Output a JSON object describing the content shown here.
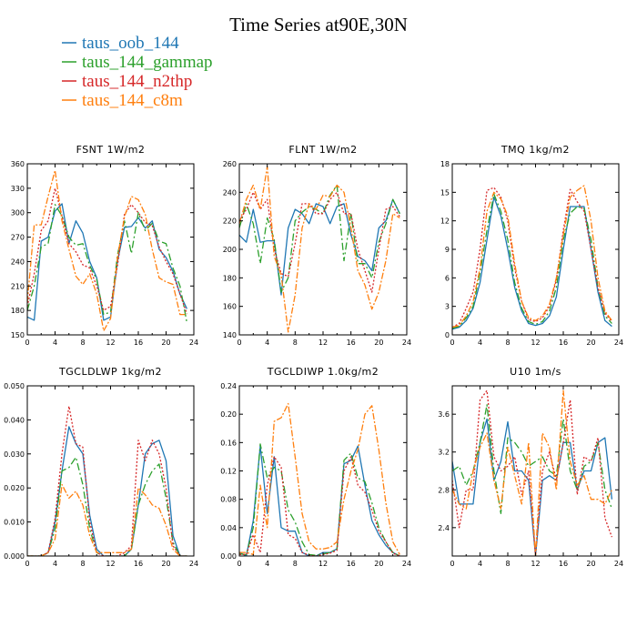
{
  "figure": {
    "title": "Time Series at90E,30N"
  },
  "colors": {
    "taus_oob_144": "#1f77b4",
    "taus_144_gammap": "#2ca02c",
    "taus_144_n2thp": "#d62728",
    "taus_144_c8m": "#ff7f0e"
  },
  "legend": [
    {
      "name": "taus_oob_144",
      "color": "#1f77b4",
      "dash": ""
    },
    {
      "name": "taus_144_gammap",
      "color": "#2ca02c",
      "dash": "8,3,2,3"
    },
    {
      "name": "taus_144_n2thp",
      "color": "#d62728",
      "dash": "2,2"
    },
    {
      "name": "taus_144_c8m",
      "color": "#ff7f0e",
      "dash": "7,2,2,2"
    }
  ],
  "chart_data": [
    {
      "type": "line",
      "title": "FSNT   1W/m2",
      "x": [
        0,
        1,
        2,
        3,
        4,
        5,
        6,
        7,
        8,
        9,
        10,
        11,
        12,
        13,
        14,
        15,
        16,
        17,
        18,
        19,
        20,
        21,
        22,
        23
      ],
      "xlim": [
        0,
        24
      ],
      "ylim": [
        150,
        360
      ],
      "xticks": [
        0,
        4,
        8,
        12,
        16,
        20,
        24
      ],
      "yticks": [
        150,
        180,
        210,
        240,
        270,
        300,
        330,
        360
      ],
      "ytick_labels": [
        "150",
        "180",
        "210",
        "240",
        "270",
        "300",
        "330",
        "360"
      ],
      "series": [
        {
          "name": "taus_oob_144",
          "values": [
            172,
            168,
            265,
            270,
            302,
            311,
            262,
            290,
            275,
            240,
            220,
            168,
            172,
            240,
            282,
            283,
            294,
            281,
            290,
            255,
            245,
            228,
            200,
            182
          ]
        },
        {
          "name": "taus_144_gammap",
          "values": [
            180,
            210,
            258,
            262,
            310,
            296,
            270,
            260,
            262,
            235,
            218,
            175,
            178,
            248,
            290,
            250,
            300,
            278,
            287,
            265,
            262,
            232,
            210,
            165
          ]
        },
        {
          "name": "taus_144_n2thp",
          "values": [
            185,
            225,
            278,
            290,
            330,
            296,
            262,
            252,
            236,
            232,
            210,
            180,
            185,
            235,
            298,
            310,
            300,
            288,
            284,
            258,
            240,
            225,
            200,
            176
          ]
        },
        {
          "name": "taus_144_c8m",
          "values": [
            190,
            285,
            285,
            320,
            352,
            290,
            255,
            222,
            212,
            225,
            200,
            155,
            170,
            245,
            295,
            320,
            316,
            298,
            255,
            220,
            215,
            212,
            175,
            175
          ]
        }
      ]
    },
    {
      "type": "line",
      "title": "FLNT   1W/m2",
      "x": [
        0,
        1,
        2,
        3,
        4,
        5,
        6,
        7,
        8,
        9,
        10,
        11,
        12,
        13,
        14,
        15,
        16,
        17,
        18,
        19,
        20,
        21,
        22,
        23
      ],
      "xlim": [
        0,
        24
      ],
      "ylim": [
        140,
        260
      ],
      "xticks": [
        0,
        4,
        8,
        12,
        16,
        20,
        24
      ],
      "yticks": [
        140,
        160,
        180,
        200,
        220,
        240,
        260
      ],
      "ytick_labels": [
        "140",
        "160",
        "180",
        "200",
        "220",
        "240",
        "260"
      ],
      "series": [
        {
          "name": "taus_oob_144",
          "values": [
            210,
            205,
            228,
            205,
            206,
            206,
            168,
            215,
            228,
            225,
            218,
            232,
            230,
            218,
            230,
            232,
            210,
            195,
            192,
            185,
            215,
            220,
            235,
            225
          ]
        },
        {
          "name": "taus_144_gammap",
          "values": [
            215,
            232,
            218,
            190,
            222,
            207,
            170,
            180,
            220,
            226,
            230,
            228,
            225,
            238,
            245,
            192,
            225,
            190,
            190,
            180,
            205,
            218,
            235,
            225
          ]
        },
        {
          "name": "taus_144_n2thp",
          "values": [
            220,
            228,
            240,
            228,
            235,
            200,
            183,
            181,
            204,
            232,
            232,
            225,
            225,
            235,
            240,
            225,
            225,
            200,
            185,
            170,
            200,
            228,
            230,
            223
          ]
        },
        {
          "name": "taus_144_c8m",
          "values": [
            218,
            235,
            245,
            228,
            258,
            195,
            182,
            142,
            168,
            215,
            232,
            228,
            238,
            237,
            245,
            240,
            215,
            185,
            175,
            158,
            170,
            192,
            225,
            222
          ]
        }
      ]
    },
    {
      "type": "line",
      "title": "TMQ   1kg/m2",
      "x": [
        0,
        1,
        2,
        3,
        4,
        5,
        6,
        7,
        8,
        9,
        10,
        11,
        12,
        13,
        14,
        15,
        16,
        17,
        18,
        19,
        20,
        21,
        22,
        23
      ],
      "xlim": [
        0,
        24
      ],
      "ylim": [
        0,
        18
      ],
      "xticks": [
        0,
        4,
        8,
        12,
        16,
        20,
        24
      ],
      "yticks": [
        0,
        3,
        6,
        9,
        12,
        15,
        18
      ],
      "ytick_labels": [
        "0",
        "3",
        "6",
        "9",
        "12",
        "15",
        "18"
      ],
      "series": [
        {
          "name": "taus_oob_144",
          "values": [
            0.6,
            0.8,
            1.5,
            2.8,
            5.5,
            10,
            14.5,
            12.5,
            9,
            5,
            2.5,
            1.2,
            1,
            1.2,
            2,
            4,
            9,
            13.5,
            13.5,
            13.5,
            9,
            4.5,
            1.5,
            0.9
          ]
        },
        {
          "name": "taus_144_gammap",
          "values": [
            0.7,
            0.9,
            1.8,
            3,
            6.5,
            11,
            14.8,
            13,
            10,
            5.5,
            2.8,
            1.4,
            1.1,
            1.4,
            2.5,
            5,
            10,
            12.8,
            13.5,
            13.3,
            10,
            5,
            2,
            1.2
          ]
        },
        {
          "name": "taus_144_n2thp",
          "values": [
            0.8,
            1.2,
            2.8,
            4.5,
            9,
            15.2,
            15.5,
            14.5,
            12,
            7,
            3.5,
            1.6,
            1.4,
            1.8,
            3,
            5.8,
            11,
            15.3,
            14,
            13,
            9,
            5,
            2.3,
            1.4
          ]
        },
        {
          "name": "taus_144_c8m",
          "values": [
            0.8,
            1,
            2,
            3.5,
            7,
            13,
            15,
            14.3,
            12.5,
            7.5,
            3.5,
            1.8,
            1.5,
            2,
            3.2,
            6,
            10.5,
            14.5,
            15.2,
            15.7,
            12,
            6,
            2.5,
            1.5
          ]
        }
      ]
    },
    {
      "type": "line",
      "title": "TGCLDLWP   1kg/m2",
      "x": [
        0,
        1,
        2,
        3,
        4,
        5,
        6,
        7,
        8,
        9,
        10,
        11,
        12,
        13,
        14,
        15,
        16,
        17,
        18,
        19,
        20,
        21,
        22,
        23
      ],
      "xlim": [
        0,
        24
      ],
      "ylim": [
        0,
        0.05
      ],
      "xticks": [
        0,
        4,
        8,
        12,
        16,
        20,
        24
      ],
      "yticks": [
        0,
        0.01,
        0.02,
        0.03,
        0.04,
        0.05
      ],
      "ytick_labels": [
        "0.000",
        "0.010",
        "0.020",
        "0.030",
        "0.040",
        "0.050"
      ],
      "series": [
        {
          "name": "taus_oob_144",
          "values": [
            0,
            0,
            0,
            0.001,
            0.01,
            0.025,
            0.038,
            0.033,
            0.03,
            0.012,
            0.002,
            0,
            0,
            0,
            0,
            0.002,
            0.015,
            0.03,
            0.033,
            0.034,
            0.028,
            0.006,
            0,
            0
          ]
        },
        {
          "name": "taus_144_gammap",
          "values": [
            0,
            0,
            0,
            0.001,
            0.008,
            0.025,
            0.026,
            0.029,
            0.021,
            0.008,
            0.001,
            0,
            0,
            0,
            0,
            0.002,
            0.015,
            0.021,
            0.025,
            0.027,
            0.017,
            0.004,
            0,
            0
          ]
        },
        {
          "name": "taus_144_n2thp",
          "values": [
            0,
            0,
            0,
            0.001,
            0.011,
            0.03,
            0.044,
            0.033,
            0.032,
            0.01,
            0.001,
            0,
            0,
            0,
            0.001,
            0.003,
            0.034,
            0.028,
            0.034,
            0.03,
            0.02,
            0.003,
            0,
            0
          ]
        },
        {
          "name": "taus_144_c8m",
          "values": [
            0,
            0,
            0,
            0.001,
            0.005,
            0.021,
            0.017,
            0.019,
            0.015,
            0.006,
            0.001,
            0.001,
            0.001,
            0.001,
            0.001,
            0.002,
            0.02,
            0.018,
            0.015,
            0.014,
            0.009,
            0.002,
            0,
            0
          ]
        }
      ]
    },
    {
      "type": "line",
      "title": "TGCLDIWP   1.0kg/m2",
      "x": [
        0,
        1,
        2,
        3,
        4,
        5,
        6,
        7,
        8,
        9,
        10,
        11,
        12,
        13,
        14,
        15,
        16,
        17,
        18,
        19,
        20,
        21,
        22,
        23
      ],
      "xlim": [
        0,
        24
      ],
      "ylim": [
        0,
        0.24
      ],
      "xticks": [
        0,
        4,
        8,
        12,
        16,
        20,
        24
      ],
      "yticks": [
        0,
        0.04,
        0.08,
        0.12,
        0.16,
        0.2,
        0.24
      ],
      "ytick_labels": [
        "0.00",
        "0.04",
        "0.08",
        "0.12",
        "0.16",
        "0.20",
        "0.24"
      ],
      "series": [
        {
          "name": "taus_oob_144",
          "values": [
            0.005,
            0,
            0.05,
            0.155,
            0.06,
            0.14,
            0.04,
            0.035,
            0.035,
            0.005,
            0,
            0,
            0.005,
            0.005,
            0.01,
            0.13,
            0.135,
            0.155,
            0.1,
            0.05,
            0.03,
            0.015,
            0.005,
            0
          ]
        },
        {
          "name": "taus_144_gammap",
          "values": [
            0.003,
            0.002,
            0.04,
            0.158,
            0.11,
            0.125,
            0.12,
            0.065,
            0.048,
            0.02,
            0.002,
            0.001,
            0.003,
            0.005,
            0.01,
            0.135,
            0.145,
            0.11,
            0.105,
            0.075,
            0.04,
            0.02,
            0.005,
            0
          ]
        },
        {
          "name": "taus_144_n2thp",
          "values": [
            0.002,
            0.002,
            0.03,
            0.005,
            0.1,
            0.14,
            0.125,
            0.03,
            0.025,
            0.005,
            0.001,
            0,
            0.002,
            0.004,
            0.008,
            0.12,
            0.14,
            0.1,
            0.09,
            0.065,
            0.035,
            0.02,
            0.004,
            0
          ]
        },
        {
          "name": "taus_144_c8m",
          "values": [
            0.005,
            0.005,
            0.002,
            0.1,
            0.04,
            0.19,
            0.195,
            0.215,
            0.14,
            0.06,
            0.02,
            0.01,
            0.01,
            0.012,
            0.02,
            0.08,
            0.12,
            0.15,
            0.2,
            0.212,
            0.15,
            0.075,
            0.02,
            0.002
          ]
        }
      ]
    },
    {
      "type": "line",
      "title": "U10   1m/s",
      "x": [
        0,
        1,
        2,
        3,
        4,
        5,
        6,
        7,
        8,
        9,
        10,
        11,
        12,
        13,
        14,
        15,
        16,
        17,
        18,
        19,
        20,
        21,
        22,
        23
      ],
      "xlim": [
        0,
        24
      ],
      "ylim": [
        2.1,
        3.9
      ],
      "xticks": [
        0,
        4,
        8,
        12,
        16,
        20,
        24
      ],
      "yticks": [
        2.4,
        2.8,
        3.2,
        3.6
      ],
      "ytick_labels": [
        "2.4",
        "2.8",
        "3.2",
        "3.6"
      ],
      "series": [
        {
          "name": "taus_oob_144",
          "values": [
            3.1,
            2.65,
            2.65,
            2.65,
            3.3,
            3.55,
            2.9,
            3.1,
            3.52,
            3.0,
            3.0,
            2.9,
            2.1,
            2.9,
            2.95,
            2.9,
            3.3,
            3.3,
            2.8,
            3.0,
            3.0,
            3.3,
            3.35,
            2.7
          ]
        },
        {
          "name": "taus_144_gammap",
          "values": [
            3.0,
            3.05,
            2.85,
            3.0,
            3.3,
            3.7,
            3.0,
            2.55,
            3.35,
            3.3,
            3.2,
            3.05,
            3.1,
            3.15,
            3.0,
            2.95,
            3.55,
            3.0,
            2.8,
            3.05,
            3.1,
            3.3,
            2.8,
            2.6
          ]
        },
        {
          "name": "taus_144_n2thp",
          "values": [
            2.9,
            2.4,
            2.8,
            2.8,
            3.75,
            3.85,
            3.15,
            3.0,
            3.05,
            3.15,
            2.75,
            3.0,
            2.1,
            3.0,
            3.2,
            2.9,
            3.3,
            3.75,
            2.75,
            3.15,
            3.1,
            3.35,
            2.5,
            2.3
          ]
        },
        {
          "name": "taus_144_c8m",
          "values": [
            2.8,
            2.65,
            2.6,
            3.0,
            3.25,
            3.4,
            2.9,
            2.6,
            3.25,
            2.95,
            2.65,
            3.3,
            2.1,
            3.4,
            3.25,
            2.8,
            3.85,
            3.1,
            2.85,
            2.95,
            2.7,
            2.7,
            2.65,
            2.8
          ]
        }
      ]
    }
  ]
}
